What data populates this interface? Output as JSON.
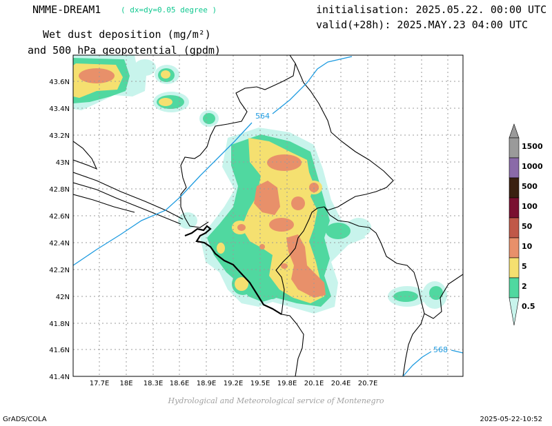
{
  "header": {
    "model": "NMME-DREAM1",
    "resolution": "( dx=dy=0.05 degree )",
    "title_line1": "Wet dust deposition (mg/m²)",
    "title_line2": "and 500 hPa geopotential (gpdm)",
    "init": "initialisation: 2025.05.22. 00:00 UTC",
    "valid": "valid(+28h): 2025.MAY.23 04:00 UTC"
  },
  "footer": {
    "credit": "Hydrological and Meteorological service of Montenegro",
    "software": "GrADS/COLA",
    "timestamp": "2025-05-22-10:52"
  },
  "axes": {
    "lon_labels": [
      "17.7E",
      "18E",
      "18.3E",
      "18.6E",
      "18.9E",
      "19.2E",
      "19.5E",
      "19.8E",
      "20.1E",
      "20.4E",
      "20.7E"
    ],
    "lat_labels": [
      "43.6N",
      "43.4N",
      "43.2N",
      "43N",
      "42.8N",
      "42.6N",
      "42.4N",
      "42.2N",
      "42N",
      "41.8N",
      "41.6N",
      "41.4N"
    ]
  },
  "contours": {
    "labels": [
      "564",
      "568"
    ],
    "color": "#1e9be0"
  },
  "legend": {
    "levels": [
      {
        "label": "1500",
        "color": "#9a9a9a"
      },
      {
        "label": "1000",
        "color": "#8a6aa8"
      },
      {
        "label": "500",
        "color": "#3a2010"
      },
      {
        "label": "100",
        "color": "#7a1030"
      },
      {
        "label": "50",
        "color": "#c05848"
      },
      {
        "label": "10",
        "color": "#e8906a"
      },
      {
        "label": "5",
        "color": "#f5e070"
      },
      {
        "label": "2",
        "color": "#50d8a0"
      },
      {
        "label": "0.5",
        "color": "#c8f4ec"
      }
    ]
  }
}
